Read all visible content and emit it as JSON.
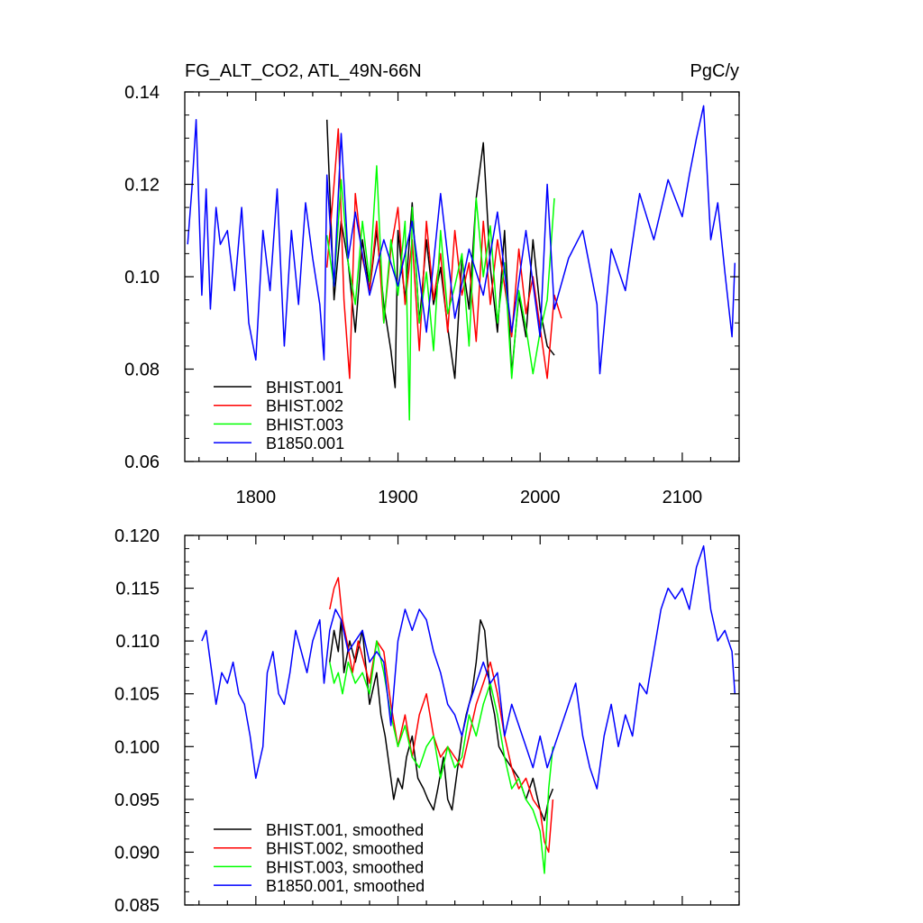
{
  "figure": {
    "title_left": "FG_ALT_CO2, ATL_49N-66N",
    "title_right": "PgC/y"
  },
  "chart_data": [
    {
      "type": "line",
      "name": "annual",
      "xlim": [
        1750,
        2140
      ],
      "ylim": [
        0.06,
        0.14
      ],
      "xticks": [
        1800,
        1900,
        2000,
        2100
      ],
      "xtick_labels": [
        "1800",
        "1900",
        "2000",
        "2100"
      ],
      "yticks": [
        0.06,
        0.08,
        0.1,
        0.12,
        0.14
      ],
      "ytick_labels": [
        "0.06",
        "0.08",
        "0.10",
        "0.12",
        "0.14"
      ],
      "legend_position": "bottom-left",
      "series": [
        {
          "name": "BHIST.001",
          "color": "#000000",
          "x": [
            1850,
            1855,
            1860,
            1865,
            1870,
            1875,
            1880,
            1885,
            1890,
            1895,
            1898,
            1900,
            1905,
            1910,
            1915,
            1920,
            1925,
            1930,
            1935,
            1940,
            1945,
            1950,
            1955,
            1960,
            1965,
            1970,
            1975,
            1980,
            1985,
            1990,
            1995,
            2000,
            2005,
            2010
          ],
          "values": [
            0.134,
            0.095,
            0.112,
            0.103,
            0.088,
            0.108,
            0.097,
            0.11,
            0.094,
            0.084,
            0.076,
            0.11,
            0.095,
            0.116,
            0.09,
            0.108,
            0.094,
            0.102,
            0.089,
            0.078,
            0.104,
            0.093,
            0.117,
            0.129,
            0.102,
            0.088,
            0.11,
            0.079,
            0.096,
            0.087,
            0.108,
            0.093,
            0.085,
            0.083
          ]
        },
        {
          "name": "BHIST.002",
          "color": "#ff0000",
          "x": [
            1850,
            1855,
            1858,
            1862,
            1866,
            1870,
            1875,
            1880,
            1885,
            1890,
            1895,
            1900,
            1905,
            1910,
            1915,
            1920,
            1925,
            1930,
            1935,
            1940,
            1945,
            1950,
            1955,
            1960,
            1965,
            1970,
            1975,
            1980,
            1985,
            1990,
            1995,
            2000,
            2005,
            2010,
            2015
          ],
          "values": [
            0.102,
            0.12,
            0.132,
            0.095,
            0.078,
            0.118,
            0.104,
            0.097,
            0.112,
            0.09,
            0.106,
            0.115,
            0.094,
            0.108,
            0.084,
            0.112,
            0.095,
            0.105,
            0.088,
            0.11,
            0.096,
            0.103,
            0.086,
            0.112,
            0.094,
            0.108,
            0.098,
            0.087,
            0.106,
            0.092,
            0.1,
            0.089,
            0.078,
            0.096,
            0.091
          ]
        },
        {
          "name": "BHIST.003",
          "color": "#00ff00",
          "x": [
            1850,
            1855,
            1860,
            1865,
            1870,
            1875,
            1880,
            1885,
            1890,
            1895,
            1900,
            1905,
            1908,
            1910,
            1915,
            1920,
            1925,
            1930,
            1935,
            1940,
            1945,
            1950,
            1955,
            1960,
            1965,
            1970,
            1975,
            1980,
            1985,
            1990,
            1995,
            2000,
            2005,
            2010
          ],
          "values": [
            0.109,
            0.098,
            0.121,
            0.103,
            0.094,
            0.112,
            0.099,
            0.124,
            0.09,
            0.108,
            0.096,
            0.112,
            0.069,
            0.115,
            0.09,
            0.101,
            0.084,
            0.11,
            0.092,
            0.098,
            0.105,
            0.085,
            0.117,
            0.1,
            0.111,
            0.09,
            0.103,
            0.078,
            0.097,
            0.089,
            0.079,
            0.088,
            0.095,
            0.117
          ]
        },
        {
          "name": "B1850.001",
          "color": "#0000ff",
          "x": [
            1752,
            1755,
            1758,
            1762,
            1765,
            1768,
            1772,
            1775,
            1780,
            1785,
            1790,
            1795,
            1800,
            1805,
            1810,
            1815,
            1820,
            1825,
            1830,
            1835,
            1840,
            1845,
            1848,
            1850,
            1855,
            1860,
            1865,
            1870,
            1880,
            1890,
            1900,
            1910,
            1920,
            1930,
            1940,
            1950,
            1960,
            1970,
            1980,
            1990,
            2000,
            2005,
            2010,
            2020,
            2030,
            2040,
            2042,
            2050,
            2060,
            2070,
            2080,
            2090,
            2100,
            2105,
            2110,
            2115,
            2120,
            2125,
            2130,
            2135,
            2137
          ],
          "values": [
            0.107,
            0.119,
            0.134,
            0.096,
            0.119,
            0.093,
            0.115,
            0.107,
            0.11,
            0.097,
            0.115,
            0.09,
            0.082,
            0.11,
            0.097,
            0.119,
            0.085,
            0.11,
            0.094,
            0.116,
            0.104,
            0.094,
            0.082,
            0.122,
            0.098,
            0.131,
            0.104,
            0.114,
            0.096,
            0.108,
            0.098,
            0.112,
            0.088,
            0.118,
            0.091,
            0.106,
            0.096,
            0.114,
            0.088,
            0.11,
            0.087,
            0.12,
            0.093,
            0.104,
            0.11,
            0.094,
            0.079,
            0.106,
            0.097,
            0.118,
            0.108,
            0.121,
            0.113,
            0.122,
            0.13,
            0.137,
            0.108,
            0.116,
            0.101,
            0.087,
            0.103
          ]
        }
      ]
    },
    {
      "type": "line",
      "name": "smoothed",
      "xlim": [
        1750,
        2140
      ],
      "ylim": [
        0.085,
        0.12
      ],
      "xticks": [
        1800,
        1900,
        2000,
        2100
      ],
      "yticks": [
        0.085,
        0.09,
        0.095,
        0.1,
        0.105,
        0.11,
        0.115,
        0.12
      ],
      "ytick_labels": [
        "0.085",
        "0.090",
        "0.095",
        "0.100",
        "0.105",
        "0.110",
        "0.115",
        "0.120"
      ],
      "legend_position": "bottom-left",
      "series": [
        {
          "name": "BHIST.001, smoothed",
          "color": "#000000",
          "x": [
            1852,
            1855,
            1858,
            1860,
            1862,
            1866,
            1870,
            1875,
            1880,
            1885,
            1888,
            1891,
            1894,
            1897,
            1900,
            1903,
            1906,
            1910,
            1914,
            1918,
            1921,
            1925,
            1928,
            1932,
            1935,
            1938,
            1941,
            1945,
            1948,
            1952,
            1955,
            1958,
            1961,
            1965,
            1968,
            1971,
            1975,
            1980,
            1985,
            1990,
            1995,
            2000,
            2003,
            2006,
            2009
          ],
          "values": [
            0.108,
            0.111,
            0.109,
            0.112,
            0.107,
            0.11,
            0.108,
            0.111,
            0.104,
            0.107,
            0.103,
            0.101,
            0.098,
            0.095,
            0.097,
            0.096,
            0.099,
            0.101,
            0.097,
            0.096,
            0.095,
            0.094,
            0.096,
            0.099,
            0.095,
            0.094,
            0.097,
            0.101,
            0.103,
            0.105,
            0.108,
            0.112,
            0.111,
            0.105,
            0.103,
            0.1,
            0.099,
            0.098,
            0.097,
            0.095,
            0.097,
            0.094,
            0.093,
            0.095,
            0.096
          ]
        },
        {
          "name": "BHIST.002, smoothed",
          "color": "#ff0000",
          "x": [
            1852,
            1855,
            1858,
            1861,
            1864,
            1868,
            1872,
            1876,
            1880,
            1885,
            1890,
            1895,
            1900,
            1905,
            1910,
            1915,
            1920,
            1925,
            1930,
            1935,
            1940,
            1945,
            1950,
            1955,
            1960,
            1965,
            1970,
            1975,
            1980,
            1985,
            1990,
            1995,
            2000,
            2003,
            2006,
            2009
          ],
          "values": [
            0.113,
            0.115,
            0.116,
            0.112,
            0.11,
            0.107,
            0.11,
            0.108,
            0.106,
            0.11,
            0.109,
            0.104,
            0.1,
            0.103,
            0.099,
            0.103,
            0.105,
            0.101,
            0.099,
            0.1,
            0.099,
            0.098,
            0.101,
            0.104,
            0.106,
            0.108,
            0.105,
            0.101,
            0.098,
            0.096,
            0.097,
            0.095,
            0.094,
            0.091,
            0.09,
            0.095
          ]
        },
        {
          "name": "BHIST.003, smoothed",
          "color": "#00ff00",
          "x": [
            1852,
            1855,
            1858,
            1861,
            1865,
            1870,
            1875,
            1880,
            1885,
            1890,
            1895,
            1900,
            1905,
            1910,
            1915,
            1920,
            1925,
            1930,
            1935,
            1940,
            1945,
            1950,
            1955,
            1960,
            1965,
            1970,
            1975,
            1980,
            1985,
            1990,
            1995,
            2000,
            2003,
            2006,
            2009
          ],
          "values": [
            0.108,
            0.106,
            0.107,
            0.105,
            0.108,
            0.106,
            0.107,
            0.105,
            0.11,
            0.107,
            0.103,
            0.1,
            0.102,
            0.099,
            0.098,
            0.1,
            0.101,
            0.097,
            0.1,
            0.098,
            0.099,
            0.103,
            0.101,
            0.104,
            0.106,
            0.103,
            0.099,
            0.096,
            0.097,
            0.095,
            0.094,
            0.092,
            0.088,
            0.096,
            0.1
          ]
        },
        {
          "name": "B1850.001, smoothed",
          "color": "#0000ff",
          "x": [
            1762,
            1765,
            1768,
            1772,
            1776,
            1780,
            1784,
            1788,
            1792,
            1796,
            1800,
            1805,
            1808,
            1812,
            1816,
            1820,
            1824,
            1828,
            1832,
            1836,
            1840,
            1845,
            1848,
            1852,
            1856,
            1860,
            1865,
            1870,
            1875,
            1880,
            1885,
            1890,
            1895,
            1900,
            1905,
            1910,
            1915,
            1920,
            1925,
            1930,
            1935,
            1940,
            1945,
            1950,
            1955,
            1960,
            1965,
            1970,
            1975,
            1980,
            1985,
            1990,
            1995,
            2000,
            2005,
            2010,
            2015,
            2020,
            2025,
            2030,
            2035,
            2040,
            2045,
            2050,
            2055,
            2060,
            2065,
            2070,
            2075,
            2080,
            2085,
            2090,
            2095,
            2100,
            2105,
            2110,
            2115,
            2120,
            2125,
            2130,
            2135,
            2137
          ],
          "values": [
            0.11,
            0.111,
            0.108,
            0.104,
            0.107,
            0.106,
            0.108,
            0.105,
            0.104,
            0.101,
            0.097,
            0.1,
            0.107,
            0.109,
            0.105,
            0.104,
            0.107,
            0.111,
            0.109,
            0.107,
            0.11,
            0.112,
            0.106,
            0.111,
            0.113,
            0.112,
            0.109,
            0.11,
            0.111,
            0.108,
            0.109,
            0.108,
            0.102,
            0.11,
            0.113,
            0.111,
            0.113,
            0.112,
            0.109,
            0.107,
            0.104,
            0.103,
            0.101,
            0.104,
            0.106,
            0.108,
            0.106,
            0.107,
            0.101,
            0.104,
            0.102,
            0.1,
            0.098,
            0.101,
            0.098,
            0.1,
            0.102,
            0.104,
            0.106,
            0.101,
            0.098,
            0.096,
            0.101,
            0.104,
            0.1,
            0.103,
            0.101,
            0.106,
            0.105,
            0.109,
            0.113,
            0.115,
            0.114,
            0.115,
            0.113,
            0.117,
            0.119,
            0.113,
            0.11,
            0.111,
            0.109,
            0.105
          ]
        }
      ]
    }
  ]
}
